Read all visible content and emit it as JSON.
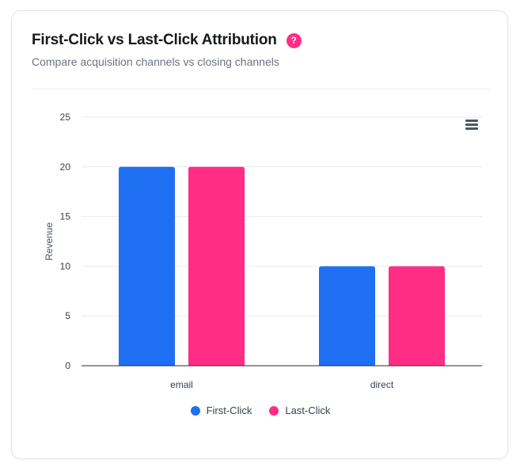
{
  "card": {
    "title": "First-Click vs Last-Click Attribution",
    "help_label": "?",
    "subtitle": "Compare acquisition channels vs closing channels"
  },
  "toolbar": {
    "menu_icon": "hamburger-menu-icon"
  },
  "colors": {
    "first_click": "#1f6ff2",
    "last_click": "#ff2d84",
    "grid": "#e9ebee",
    "axis": "#2b2b2b",
    "text": "#374151"
  },
  "chart_data": {
    "type": "bar",
    "categories": [
      "email",
      "direct"
    ],
    "series": [
      {
        "name": "First-Click",
        "values": [
          20,
          10
        ]
      },
      {
        "name": "Last-Click",
        "values": [
          20,
          10
        ]
      }
    ],
    "ylabel": "Revenue",
    "ylim": [
      0,
      25
    ],
    "yticks": [
      0,
      5,
      10,
      15,
      20,
      25
    ],
    "grid": true,
    "legend": "bottom-center"
  }
}
